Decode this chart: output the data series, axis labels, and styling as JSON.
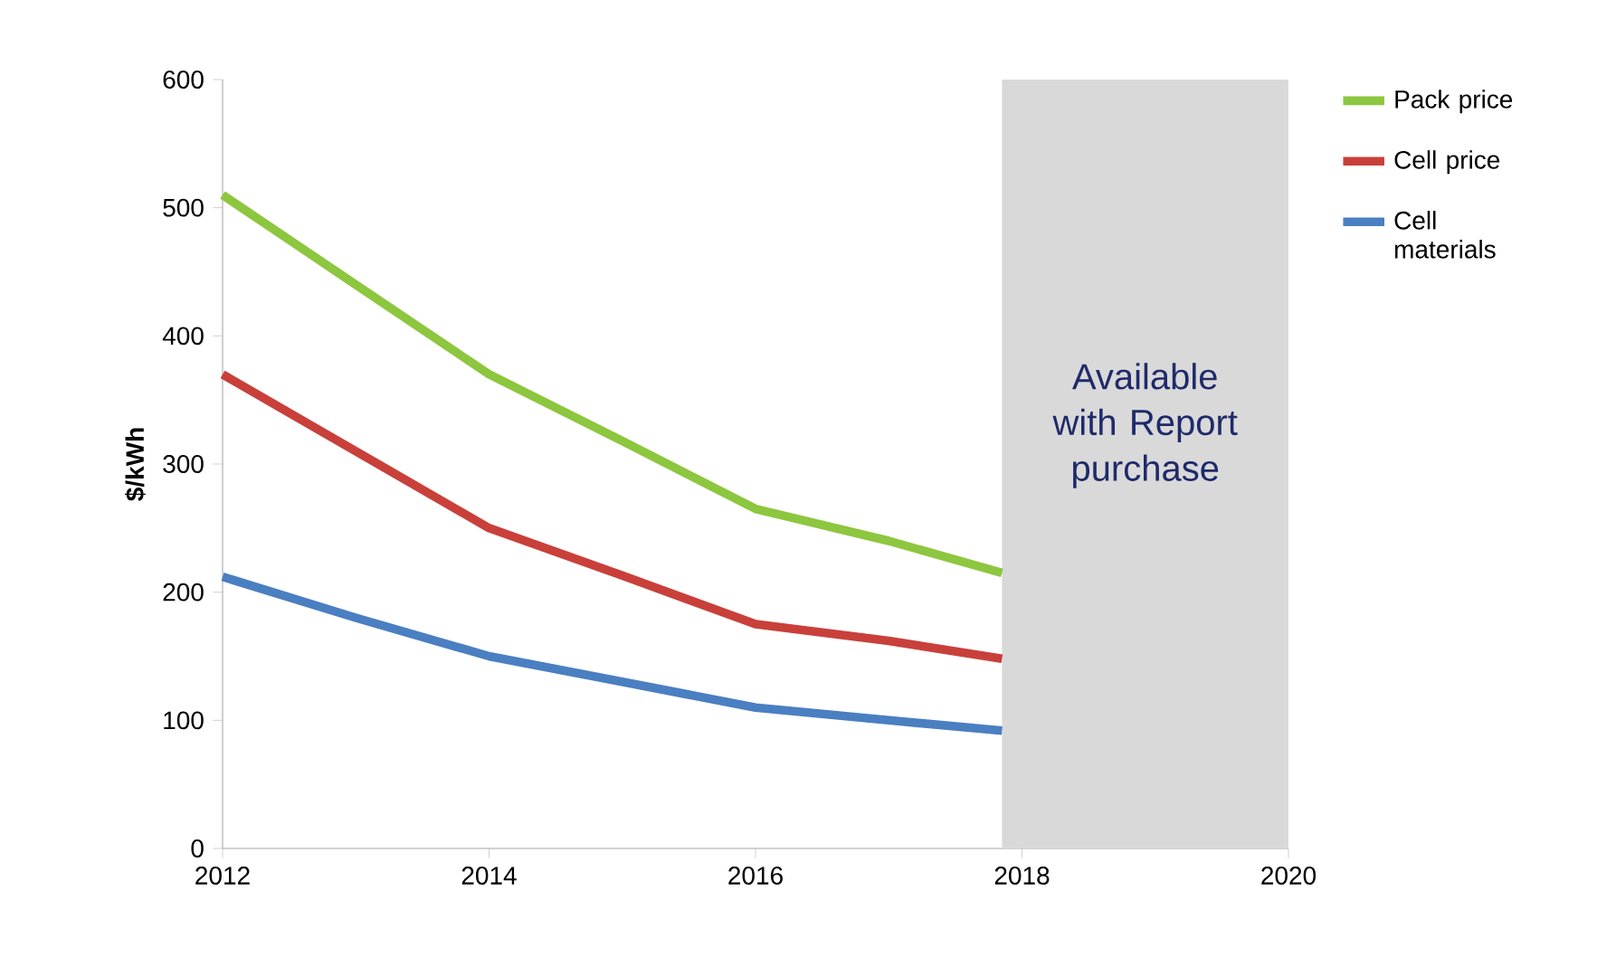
{
  "chart_data": {
    "type": "line",
    "ylabel": "$/kWh",
    "x": [
      2012,
      2013,
      2014,
      2015,
      2016,
      2017,
      2017.85
    ],
    "series": [
      {
        "name": "Pack price",
        "color": "#8dc63f",
        "values": [
          510,
          440,
          370,
          318,
          265,
          240,
          215
        ]
      },
      {
        "name": "Cell price",
        "color": "#c9403a",
        "values": [
          370,
          310,
          250,
          213,
          175,
          162,
          148
        ]
      },
      {
        "name": "Cell materials",
        "color": "#4a7fc1",
        "values": [
          212,
          180,
          150,
          130,
          110,
          100,
          92
        ]
      }
    ],
    "xlim": [
      2012,
      2020
    ],
    "xticks": [
      2012,
      2014,
      2016,
      2018,
      2020
    ],
    "ylim": [
      0,
      600
    ],
    "yticks": [
      0,
      100,
      200,
      300,
      400,
      500,
      600
    ],
    "bands": [
      {
        "axis": "x",
        "from": 2017.85,
        "to": 2020,
        "label": "Available with Report purchase",
        "color": "#d9d9d9"
      }
    ],
    "grid": false,
    "legend": "right",
    "marker": "none",
    "line_style": "solid"
  }
}
